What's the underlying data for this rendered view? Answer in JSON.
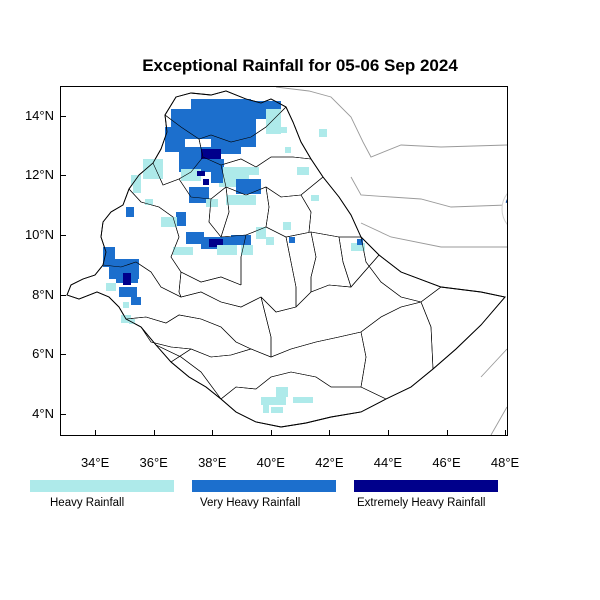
{
  "title": "Exceptional Rainfall for 05-06 Sep 2024",
  "y_ticks": [
    {
      "label": "14°N",
      "lat": 14
    },
    {
      "label": "12°N",
      "lat": 12
    },
    {
      "label": "10°N",
      "lat": 10
    },
    {
      "label": "8°N",
      "lat": 8
    },
    {
      "label": "6°N",
      "lat": 6
    },
    {
      "label": "4°N",
      "lat": 4
    }
  ],
  "x_ticks": [
    {
      "label": "34°E",
      "lon": 34
    },
    {
      "label": "36°E",
      "lon": 36
    },
    {
      "label": "38°E",
      "lon": 38
    },
    {
      "label": "40°E",
      "lon": 40
    },
    {
      "label": "42°E",
      "lon": 42
    },
    {
      "label": "44°E",
      "lon": 44
    },
    {
      "label": "46°E",
      "lon": 46
    },
    {
      "label": "48°E",
      "lon": 48
    }
  ],
  "extent": {
    "lon_min": 32.8,
    "lon_max": 48.1,
    "lat_min": 3.25,
    "lat_max": 15.0
  },
  "legend": [
    {
      "label": "Heavy Rainfall",
      "color": "#aeeaea"
    },
    {
      "label": "Very Heavy Rainfall",
      "color": "#1c6fcd"
    },
    {
      "label": "Extremely Heavy Rainfall",
      "color": "#00008b"
    }
  ],
  "logo": {
    "icon": "ethiopian-meteorology-institute-logo"
  }
}
